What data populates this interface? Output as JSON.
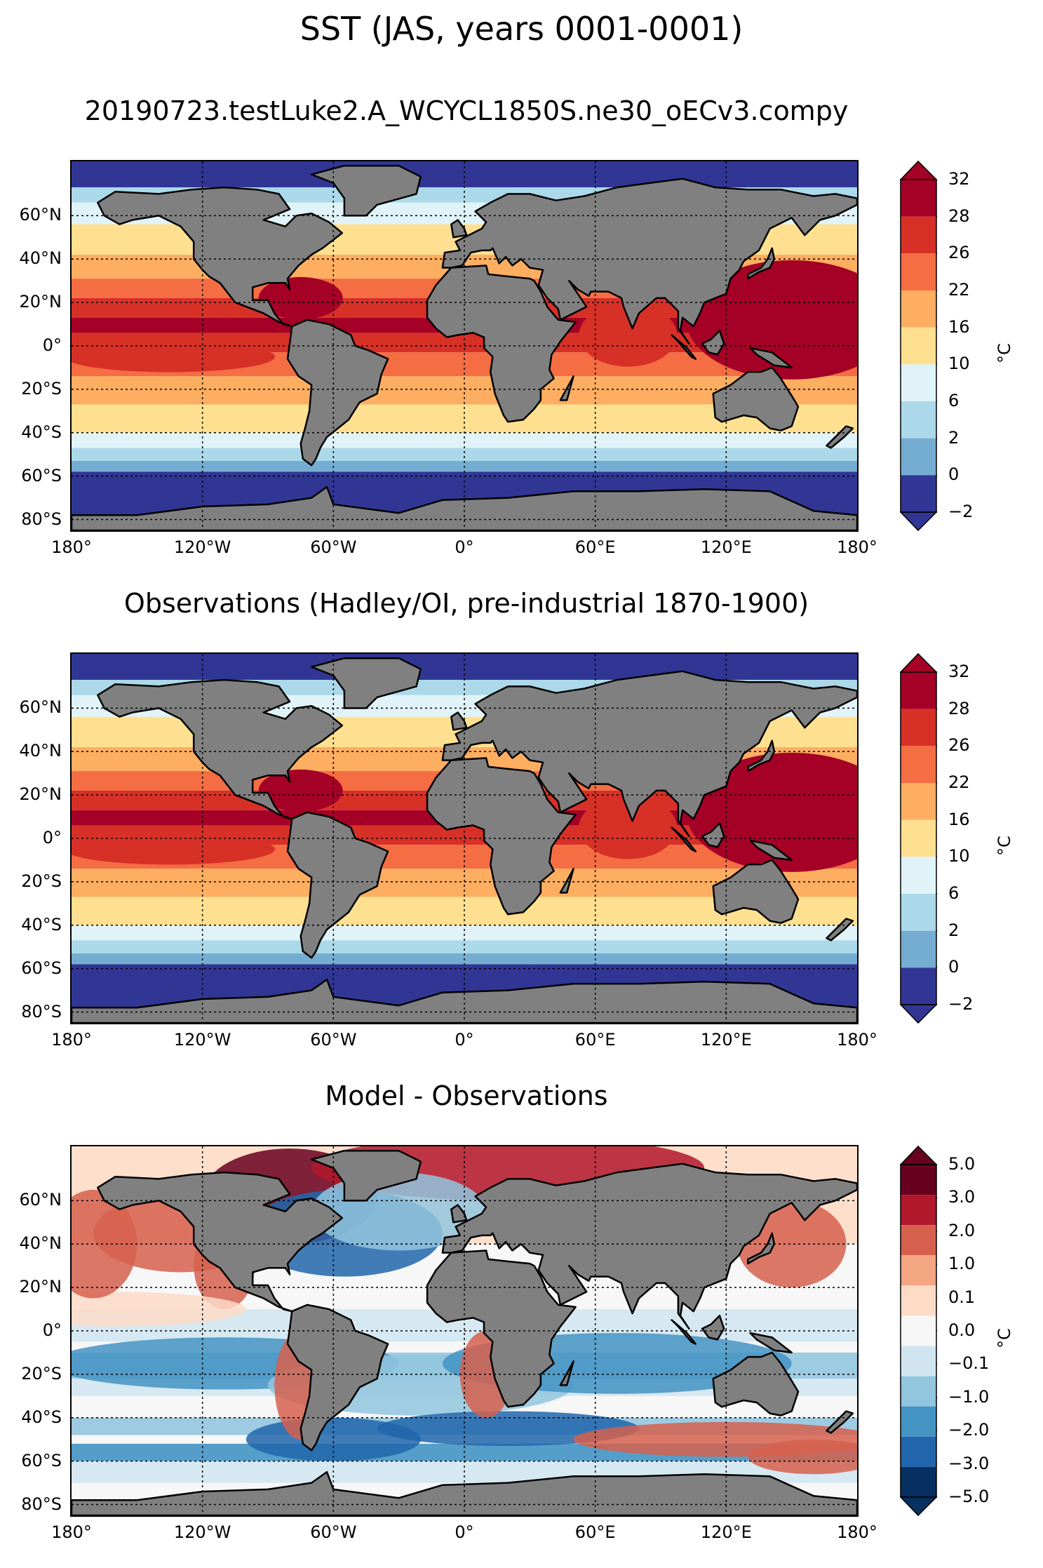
{
  "figure": {
    "title": "SST (JAS, years 0001-0001)"
  },
  "chart_data": [
    {
      "type": "heatmap",
      "title": "20190723.testLuke2.A_WCYCL1850S.ne30_oECv3.compy",
      "lat_ticks": [
        "60°N",
        "40°N",
        "20°N",
        "0°",
        "20°S",
        "40°S",
        "60°S",
        "80°S"
      ],
      "lon_ticks": [
        "180°",
        "120°W",
        "60°W",
        "0°",
        "60°E",
        "120°E",
        "180°"
      ],
      "colorbar": {
        "levels": [
          "32",
          "28",
          "26",
          "22",
          "16",
          "10",
          "6",
          "2",
          "0",
          "−2"
        ],
        "colors": [
          "#a50026",
          "#d73027",
          "#f46d43",
          "#fdae61",
          "#fee090",
          "#e0f3f8",
          "#abd9e9",
          "#74add1",
          "#313695"
        ],
        "unit": "°C"
      },
      "x": [
        -180,
        180
      ],
      "y": [
        -85,
        85
      ],
      "land_color": "#808080"
    },
    {
      "type": "heatmap",
      "title": "Observations (Hadley/OI, pre-industrial 1870-1900)",
      "lat_ticks": [
        "60°N",
        "40°N",
        "20°N",
        "0°",
        "20°S",
        "40°S",
        "60°S",
        "80°S"
      ],
      "lon_ticks": [
        "180°",
        "120°W",
        "60°W",
        "0°",
        "60°E",
        "120°E",
        "180°"
      ],
      "colorbar": {
        "levels": [
          "32",
          "28",
          "26",
          "22",
          "16",
          "10",
          "6",
          "2",
          "0",
          "−2"
        ],
        "colors": [
          "#a50026",
          "#d73027",
          "#f46d43",
          "#fdae61",
          "#fee090",
          "#e0f3f8",
          "#abd9e9",
          "#74add1",
          "#313695"
        ],
        "unit": "°C"
      },
      "x": [
        -180,
        180
      ],
      "y": [
        -85,
        85
      ],
      "land_color": "#808080"
    },
    {
      "type": "heatmap",
      "title": "Model - Observations",
      "lat_ticks": [
        "60°N",
        "40°N",
        "20°N",
        "0°",
        "20°S",
        "40°S",
        "60°S",
        "80°S"
      ],
      "lon_ticks": [
        "180°",
        "120°W",
        "60°W",
        "0°",
        "60°E",
        "120°E",
        "180°"
      ],
      "colorbar": {
        "levels": [
          "5.0",
          "3.0",
          "2.0",
          "1.0",
          "0.1",
          "0.0",
          "−0.1",
          "−1.0",
          "−2.0",
          "−3.0",
          "−5.0"
        ],
        "colors": [
          "#67001f",
          "#b2182b",
          "#d6604d",
          "#f4a582",
          "#fddbc7",
          "#f7f7f7",
          "#d1e5f0",
          "#92c5de",
          "#4393c3",
          "#2166ac",
          "#053061"
        ],
        "unit": "°C"
      },
      "x": [
        -180,
        180
      ],
      "y": [
        -85,
        85
      ],
      "land_color": "#808080"
    }
  ]
}
